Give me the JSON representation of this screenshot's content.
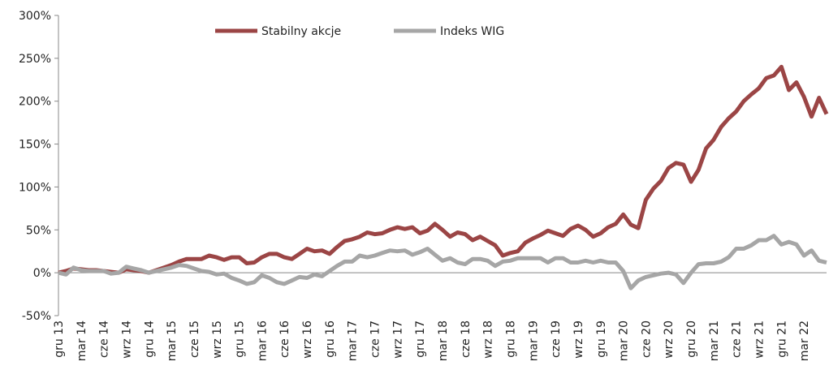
{
  "chart_data": {
    "type": "line",
    "categories": [
      "gru 13",
      null,
      null,
      "mar 14",
      null,
      null,
      "cze 14",
      null,
      null,
      "wrz 14",
      null,
      null,
      "gru 14",
      null,
      null,
      "mar 15",
      null,
      null,
      "cze 15",
      null,
      null,
      "wrz 15",
      null,
      null,
      "gru 15",
      null,
      null,
      "mar 16",
      null,
      null,
      "cze 16",
      null,
      null,
      "wrz 16",
      null,
      null,
      "gru 16",
      null,
      null,
      "mar 17",
      null,
      null,
      "cze 17",
      null,
      null,
      "wrz 17",
      null,
      null,
      "gru 17",
      null,
      null,
      "mar 18",
      null,
      null,
      "cze 18",
      null,
      null,
      "wrz 18",
      null,
      null,
      "gru 18",
      null,
      null,
      "mar 19",
      null,
      null,
      "cze 19",
      null,
      null,
      "wrz 19",
      null,
      null,
      "gru 19",
      null,
      null,
      "mar 20",
      null,
      null,
      "cze 20",
      null,
      null,
      "wrz 20",
      null,
      null,
      "gru 20",
      null,
      null,
      "mar 21",
      null,
      null,
      "cze 21",
      null,
      null,
      "wrz 21",
      null,
      null,
      "gru 21",
      null,
      null,
      "mar 22",
      null,
      null,
      null
    ],
    "series": [
      {
        "name": "Stabilny akcje",
        "color": "#9b4545",
        "values": [
          0,
          2,
          5,
          4,
          3,
          3,
          2,
          1,
          0,
          4,
          3,
          2,
          0,
          3,
          6,
          9,
          13,
          16,
          16,
          16,
          20,
          18,
          15,
          18,
          18,
          11,
          12,
          18,
          22,
          22,
          18,
          16,
          22,
          28,
          25,
          26,
          22,
          30,
          37,
          39,
          42,
          47,
          45,
          46,
          50,
          53,
          51,
          53,
          46,
          49,
          57,
          50,
          42,
          47,
          45,
          38,
          42,
          37,
          32,
          20,
          23,
          25,
          35,
          40,
          44,
          49,
          46,
          43,
          51,
          55,
          50,
          42,
          46,
          53,
          57,
          68,
          56,
          52,
          85,
          98,
          107,
          122,
          128,
          126,
          106,
          120,
          145,
          155,
          170,
          180,
          188,
          200,
          208,
          215,
          227,
          230,
          240,
          213,
          222,
          205,
          182,
          204,
          185
        ]
      },
      {
        "name": "Indeks WIG",
        "color": "#a6a6a6",
        "values": [
          0,
          -2,
          6,
          3,
          2,
          2,
          2,
          -1,
          0,
          7,
          5,
          3,
          0,
          2,
          4,
          6,
          9,
          8,
          5,
          2,
          1,
          -2,
          -1,
          -6,
          -9,
          -13,
          -11,
          -3,
          -6,
          -11,
          -13,
          -9,
          -5,
          -6,
          -2,
          -4,
          2,
          8,
          13,
          13,
          20,
          18,
          20,
          23,
          26,
          25,
          26,
          21,
          24,
          28,
          21,
          14,
          17,
          12,
          10,
          16,
          16,
          14,
          8,
          13,
          14,
          17,
          17,
          17,
          17,
          12,
          17,
          17,
          12,
          12,
          14,
          12,
          14,
          12,
          12,
          2,
          -18,
          -9,
          -5,
          -3,
          -1,
          0,
          -2,
          -12,
          0,
          10,
          11,
          11,
          13,
          18,
          28,
          28,
          32,
          38,
          38,
          43,
          33,
          36,
          33,
          20,
          26,
          14,
          12
        ]
      }
    ],
    "ylim": [
      -50,
      300
    ],
    "yticks": [
      {
        "value": -50,
        "label": "-50%"
      },
      {
        "value": 0,
        "label": "0%"
      },
      {
        "value": 50,
        "label": "50%"
      },
      {
        "value": 100,
        "label": "100%"
      },
      {
        "value": 150,
        "label": "150%"
      },
      {
        "value": 200,
        "label": "200%"
      },
      {
        "value": 250,
        "label": "250%"
      },
      {
        "value": 300,
        "label": "300%"
      }
    ],
    "legend": "top"
  }
}
